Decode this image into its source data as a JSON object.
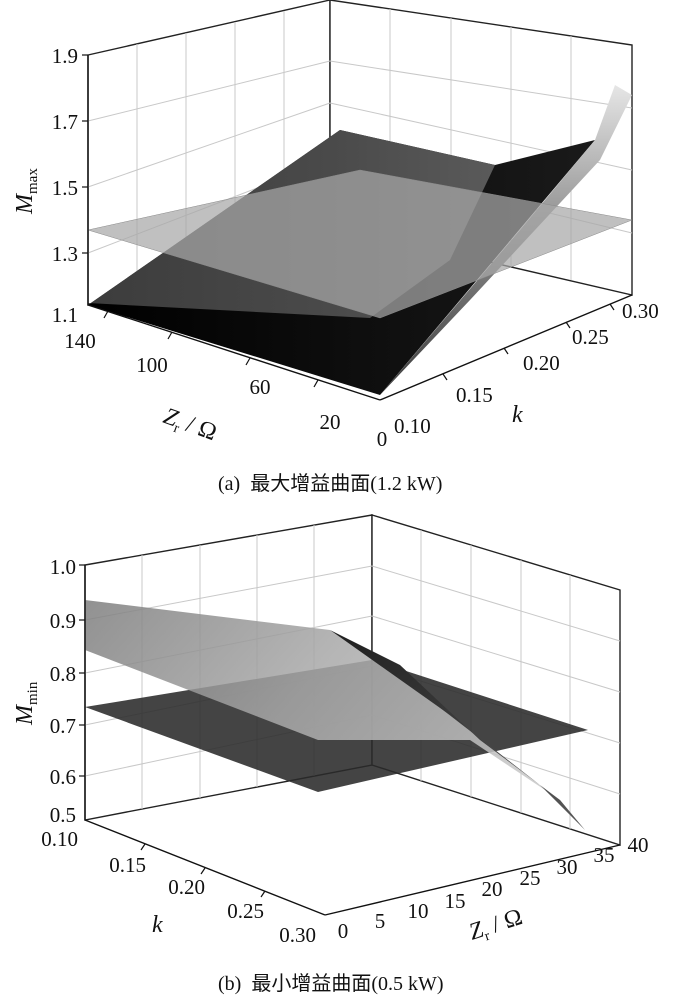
{
  "chart_data": [
    {
      "type": "surface3d",
      "panel_label": "(a)",
      "caption": "最大增益曲面(1.2 kW)",
      "zlabel_main": "M",
      "zlabel_sub": "max",
      "xlabel_main": "Z",
      "xlabel_sub": "r",
      "xlabel_unit": " / Ω",
      "ylabel": "k",
      "z_ticks": [
        "1.1",
        "1.3",
        "1.5",
        "1.7",
        "1.9"
      ],
      "x_ticks": [
        "140",
        "100",
        "60",
        "20",
        "0"
      ],
      "y_ticks": [
        "0.10",
        "0.15",
        "0.20",
        "0.25",
        "0.30"
      ],
      "x_range": [
        0,
        140
      ],
      "y_range": [
        0.1,
        0.3
      ],
      "z_range": [
        1.1,
        1.9
      ],
      "plane_value": 1.4,
      "grid": true,
      "surface_shading": "dark gray gradient",
      "plane_color": "#9a9a9a"
    },
    {
      "type": "surface3d",
      "panel_label": "(b)",
      "caption": "最小增益曲面(0.5 kW)",
      "zlabel_main": "M",
      "zlabel_sub": "min",
      "xlabel_main": "Z",
      "xlabel_sub": "r",
      "xlabel_unit": " / Ω",
      "ylabel": "k",
      "z_ticks": [
        "0.5",
        "0.6",
        "0.7",
        "0.8",
        "0.9",
        "1.0"
      ],
      "x_ticks": [
        "0",
        "5",
        "10",
        "15",
        "20",
        "25",
        "30",
        "35",
        "40"
      ],
      "y_ticks": [
        "0.10",
        "0.15",
        "0.20",
        "0.25",
        "0.30"
      ],
      "x_range": [
        0,
        40
      ],
      "y_range": [
        0.1,
        0.3
      ],
      "z_range": [
        0.5,
        1.0
      ],
      "plane_value": 0.7,
      "grid": true,
      "surface_shading": "light gray gradient",
      "plane_color": "#3a3a3a"
    }
  ]
}
